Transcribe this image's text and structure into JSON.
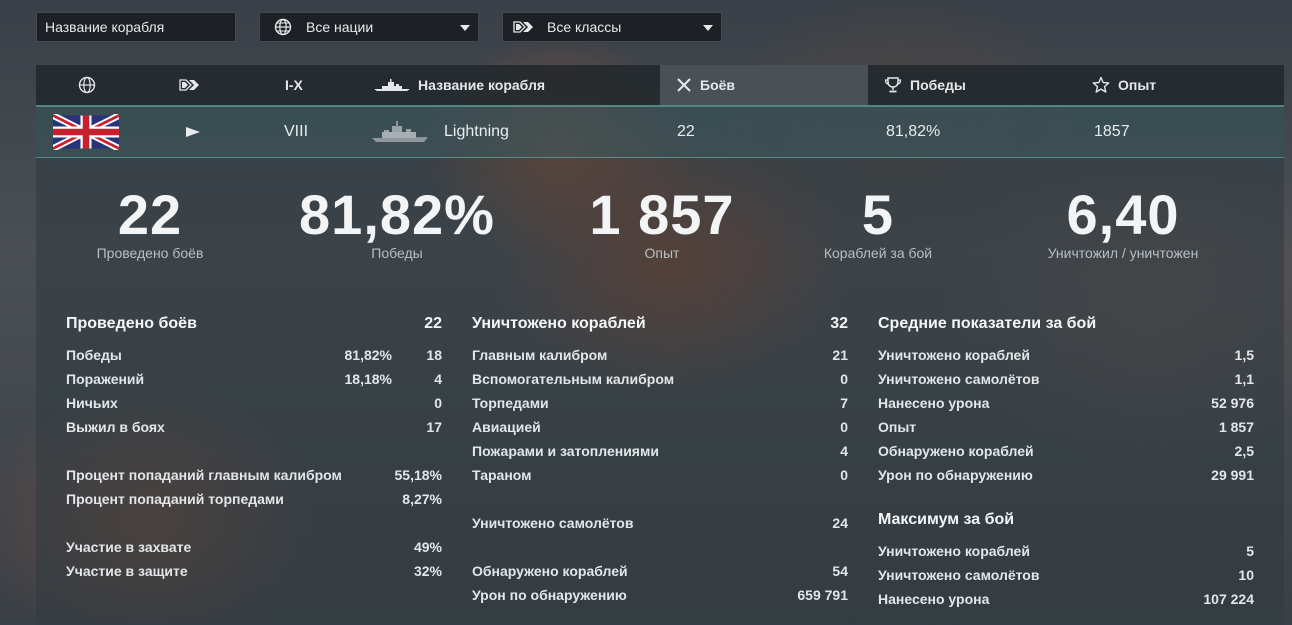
{
  "filters": {
    "ship_name_placeholder": "Название корабля",
    "nation": "Все нации",
    "class": "Все классы"
  },
  "table_header": {
    "tier": "I-X",
    "ship_name": "Название корабля",
    "battles": "Боёв",
    "wins": "Победы",
    "xp": "Опыт"
  },
  "ship_row": {
    "nation_flag": "uk-flag",
    "class_icon": "destroyer-icon",
    "tier": "VIII",
    "name": "Lightning",
    "battles": "22",
    "wins": "81,82%",
    "xp": "1857"
  },
  "summary": [
    {
      "value": "22",
      "label": "Проведено боёв"
    },
    {
      "value": "81,82%",
      "label": "Победы"
    },
    {
      "value": "1 857",
      "label": "Опыт"
    },
    {
      "value": "5",
      "label": "Кораблей за бой"
    },
    {
      "value": "6,40",
      "label": "Уничтожил / уничтожен"
    }
  ],
  "col1": {
    "title": "Проведено боёв",
    "title_value": "22",
    "rows": [
      {
        "label": "Победы",
        "pct": "81,82%",
        "value": "18"
      },
      {
        "label": "Поражений",
        "pct": "18,18%",
        "value": "4"
      },
      {
        "label": "Ничьих",
        "value": "0"
      },
      {
        "label": "Выжил в боях",
        "value": "17"
      },
      {
        "label": "Процент попаданий главным калибром",
        "value": "55,18%"
      },
      {
        "label": "Процент попаданий торпедами",
        "value": "8,27%"
      },
      {
        "label": "Участие в захвате",
        "value": "49%"
      },
      {
        "label": "Участие в защите",
        "value": "32%"
      }
    ]
  },
  "col2": {
    "title": "Уничтожено кораблей",
    "title_value": "32",
    "rows": [
      {
        "label": "Главным калибром",
        "value": "21"
      },
      {
        "label": "Вспомогательным калибром",
        "value": "0"
      },
      {
        "label": "Торпедами",
        "value": "7"
      },
      {
        "label": "Авиацией",
        "value": "0"
      },
      {
        "label": "Пожарами и затоплениями",
        "value": "4"
      },
      {
        "label": "Тараном",
        "value": "0"
      },
      {
        "label": "Уничтожено самолётов",
        "value": "24"
      },
      {
        "label": "Обнаружено кораблей",
        "value": "54"
      },
      {
        "label": "Урон по обнаружению",
        "value": "659 791"
      }
    ]
  },
  "col3": {
    "title": "Средние показатели за бой",
    "rows": [
      {
        "label": "Уничтожено кораблей",
        "value": "1,5"
      },
      {
        "label": "Уничтожено самолётов",
        "value": "1,1"
      },
      {
        "label": "Нанесено урона",
        "value": "52 976"
      },
      {
        "label": "Опыт",
        "value": "1 857"
      },
      {
        "label": "Обнаружено кораблей",
        "value": "2,5"
      },
      {
        "label": "Урон по обнаружению",
        "value": "29 991"
      }
    ],
    "title2": "Максимум за бой",
    "rows2": [
      {
        "label": "Уничтожено кораблей",
        "value": "5"
      },
      {
        "label": "Уничтожено самолётов",
        "value": "10"
      },
      {
        "label": "Нанесено урона",
        "value": "107 224"
      }
    ]
  }
}
